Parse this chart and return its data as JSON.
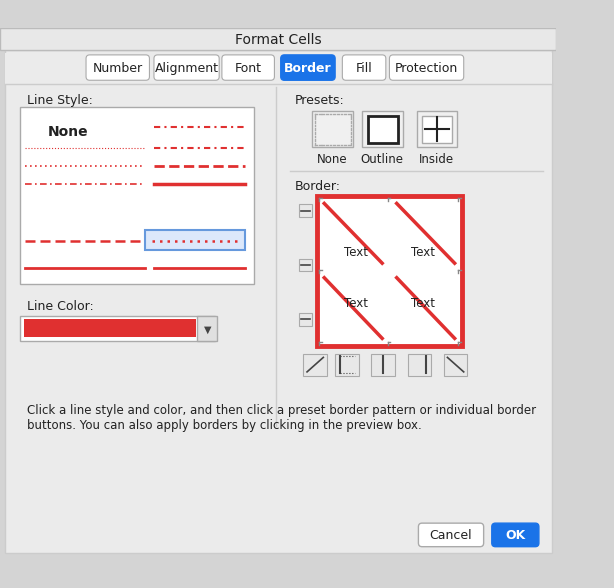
{
  "title": "Format Cells",
  "tabs": [
    "Number",
    "Alignment",
    "Font",
    "Border",
    "Fill",
    "Protection"
  ],
  "active_tab": "Border",
  "active_tab_color": "#1a73e8",
  "bg_color": "#d4d4d4",
  "dialog_bg": "#ebebeb",
  "white": "#ffffff",
  "tab_bg": "#f5f5f5",
  "line_style_label": "Line Style:",
  "presets_label": "Presets:",
  "border_label": "Border:",
  "line_color_label": "Line Color:",
  "none_label": "None",
  "outline_label": "Outline",
  "inside_label": "Inside",
  "text_labels": [
    "Text",
    "Text",
    "Text",
    "Text"
  ],
  "red_color": "#e03030",
  "footer_text": "Click a line style and color, and then click a preset border pattern or individual border\nbuttons. You can also apply borders by clicking in the preview box.",
  "cancel_btn": "Cancel",
  "ok_btn": "OK",
  "ok_btn_color": "#1a73e8"
}
